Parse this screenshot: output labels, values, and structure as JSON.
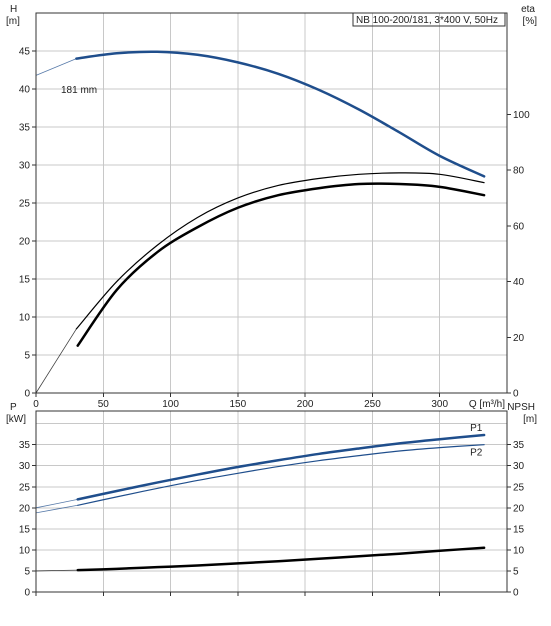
{
  "chart_data": [
    {
      "type": "line",
      "name": "head-efficiency",
      "annotation": "NB 100-200/181, 3*400 V, 50Hz",
      "left_axis": {
        "label_line1": "H",
        "label_line2": "[m]",
        "ylim": [
          0,
          50
        ],
        "ticks": [
          0,
          5,
          10,
          15,
          20,
          25,
          30,
          35,
          40,
          45
        ]
      },
      "right_axis": {
        "label_line1": "eta",
        "label_line2": "[%]",
        "ylim": [
          0,
          136.4
        ],
        "ticks": [
          0,
          20,
          40,
          60,
          80,
          100
        ]
      },
      "x_axis": {
        "label": "Q [m³/h]",
        "xlim": [
          0,
          350
        ],
        "ticks": [
          0,
          50,
          100,
          150,
          200,
          250,
          300
        ]
      },
      "grid": true,
      "series": [
        {
          "name": "181 mm",
          "axis": "left",
          "color": "#1f4e8c",
          "width": 2.5,
          "x": [
            0,
            30,
            60,
            90,
            120,
            150,
            180,
            210,
            240,
            270,
            300,
            333
          ],
          "y": [
            41.8,
            44.0,
            44.7,
            44.9,
            44.5,
            43.5,
            42.0,
            39.9,
            37.3,
            34.3,
            31.2,
            28.5
          ],
          "segment_thin_until_x": 30
        },
        {
          "name": "",
          "axis": "right",
          "color": "#000000",
          "width": 1.2,
          "x": [
            0,
            30,
            60,
            90,
            120,
            150,
            180,
            210,
            240,
            270,
            300,
            333
          ],
          "y": [
            0,
            23,
            40,
            53,
            63,
            70,
            74.5,
            77,
            78.5,
            79,
            78.5,
            75.5
          ],
          "segment_thin_until_x": 30
        },
        {
          "name": "",
          "axis": "right",
          "color": "#000000",
          "width": 2.5,
          "x": [
            31,
            60,
            90,
            120,
            150,
            180,
            210,
            240,
            270,
            300,
            333
          ],
          "y": [
            17,
            37,
            50.5,
            59.5,
            66.5,
            71,
            73.5,
            75,
            75,
            74,
            71
          ]
        }
      ]
    },
    {
      "type": "line",
      "name": "power-npsh",
      "left_axis": {
        "label_line1": "P",
        "label_line2": "[kW]",
        "ylim": [
          0,
          43
        ],
        "ticks": [
          0,
          5,
          10,
          15,
          20,
          25,
          30,
          35
        ]
      },
      "right_axis": {
        "label_line1": "NPSH",
        "label_line2": "[m]",
        "ylim": [
          0,
          43
        ],
        "ticks": [
          0,
          5,
          10,
          15,
          20,
          25,
          30,
          35
        ]
      },
      "x_axis": {
        "xlim": [
          0,
          350
        ],
        "ticks": [
          0,
          50,
          100,
          150,
          200,
          250,
          300
        ]
      },
      "grid": true,
      "series": [
        {
          "name": "P1",
          "axis": "left",
          "color": "#1f4e8c",
          "width": 2.5,
          "x": [
            0,
            31,
            60,
            90,
            120,
            150,
            180,
            210,
            240,
            270,
            300,
            333
          ],
          "y": [
            20.0,
            22.0,
            24.0,
            26.0,
            27.9,
            29.7,
            31.3,
            32.8,
            34.1,
            35.3,
            36.3,
            37.3
          ],
          "segment_thin_until_x": 31
        },
        {
          "name": "P2",
          "axis": "left",
          "color": "#1f4e8c",
          "width": 1.2,
          "x": [
            0,
            31,
            60,
            90,
            120,
            150,
            180,
            210,
            240,
            270,
            300,
            333
          ],
          "y": [
            18.8,
            20.6,
            22.6,
            24.6,
            26.5,
            28.2,
            29.8,
            31.2,
            32.4,
            33.5,
            34.3,
            35.0
          ],
          "segment_thin_until_x": 31
        },
        {
          "name": "",
          "axis": "right",
          "color": "#000000",
          "width": 2.5,
          "x": [
            0,
            31,
            60,
            90,
            120,
            150,
            180,
            210,
            240,
            270,
            300,
            333
          ],
          "y": [
            5.0,
            5.2,
            5.5,
            5.9,
            6.3,
            6.8,
            7.3,
            7.9,
            8.5,
            9.1,
            9.8,
            10.5
          ],
          "segment_thin_until_x": 31
        }
      ]
    }
  ]
}
